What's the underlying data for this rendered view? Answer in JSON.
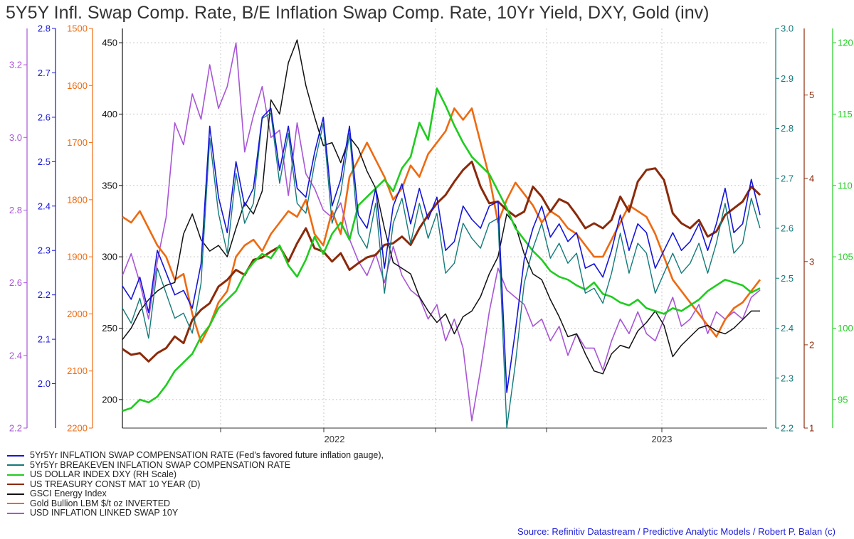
{
  "chart_data": {
    "type": "line",
    "title": "5Y5Y Infl. Swap Comp. Rate, B/E Inflation Swap Comp. Rate, 10Yr Yield, DXY, Gold (inv)",
    "x_tick_labels": [
      "2022",
      "2023"
    ],
    "x_range": [
      "2021-04",
      "2023-05"
    ],
    "grid": true,
    "axes": [
      {
        "id": "ils",
        "side": "left",
        "color": "#a855d6",
        "range": [
          2.2,
          3.3
        ],
        "ticks": [
          2.2,
          2.4,
          2.6,
          2.8,
          3.0,
          3.2
        ]
      },
      {
        "id": "swap5y5y",
        "side": "left",
        "color": "#1515d8",
        "range": [
          1.9,
          2.8
        ],
        "ticks": [
          2.0,
          2.1,
          2.2,
          2.3,
          2.4,
          2.5,
          2.6,
          2.7,
          2.8
        ]
      },
      {
        "id": "gold_inv",
        "side": "left",
        "color": "#ee6a10",
        "inverted": true,
        "range": [
          1500,
          2200
        ],
        "ticks": [
          1500,
          1600,
          1700,
          1800,
          1900,
          2000,
          2100,
          2200
        ]
      },
      {
        "id": "gsci",
        "side": "left",
        "color": "#111111",
        "range": [
          180,
          460
        ],
        "ticks": [
          200,
          250,
          300,
          350,
          400,
          450
        ]
      },
      {
        "id": "breakeven",
        "side": "right",
        "color": "#137a7a",
        "range": [
          2.2,
          3.0
        ],
        "ticks": [
          2.2,
          2.3,
          2.4,
          2.5,
          2.6,
          2.7,
          2.8,
          2.9,
          3.0
        ]
      },
      {
        "id": "ust10y",
        "side": "right",
        "color": "#8b2a0a",
        "range": [
          1,
          5.8
        ],
        "ticks": [
          1,
          2,
          3,
          4,
          5
        ]
      },
      {
        "id": "dxy",
        "side": "right",
        "color": "#1fcc1f",
        "range": [
          93,
          121
        ],
        "ticks": [
          95,
          100,
          105,
          110,
          115,
          120
        ]
      }
    ],
    "series": [
      {
        "name": "5Yr5Yr INFLATION SWAP COMPENSATION RATE (Fed's favored future inflation gauge),",
        "axis": "swap5y5y",
        "color": "#1515d8",
        "width": 1.6,
        "values": [
          2.22,
          2.19,
          2.24,
          2.16,
          2.3,
          2.25,
          2.2,
          2.21,
          2.17,
          2.27,
          2.58,
          2.42,
          2.34,
          2.5,
          2.4,
          2.44,
          2.6,
          2.62,
          2.48,
          2.58,
          2.44,
          2.42,
          2.52,
          2.6,
          2.4,
          2.46,
          2.58,
          2.38,
          2.35,
          2.44,
          2.26,
          2.4,
          2.45,
          2.36,
          2.44,
          2.37,
          2.42,
          2.3,
          2.32,
          2.4,
          2.37,
          2.35,
          2.4,
          2.41,
          1.98,
          2.12,
          2.28,
          2.35,
          2.4,
          2.33,
          2.36,
          2.32,
          2.34,
          2.26,
          2.27,
          2.24,
          2.3,
          2.38,
          2.3,
          2.36,
          2.34,
          2.26,
          2.3,
          2.34,
          2.3,
          2.32,
          2.36,
          2.3,
          2.36,
          2.44,
          2.34,
          2.36,
          2.46,
          2.38
        ]
      },
      {
        "name": "5Yr5Yr BREAKEVEN INFLATION SWAP COMPENSATION RATE",
        "axis": "breakeven",
        "color": "#137a7a",
        "width": 1.4,
        "values": [
          2.44,
          2.41,
          2.46,
          2.38,
          2.52,
          2.47,
          2.42,
          2.43,
          2.39,
          2.49,
          2.78,
          2.63,
          2.55,
          2.71,
          2.61,
          2.65,
          2.82,
          2.83,
          2.69,
          2.79,
          2.65,
          2.63,
          2.73,
          2.81,
          2.61,
          2.67,
          2.79,
          2.59,
          2.56,
          2.65,
          2.47,
          2.61,
          2.66,
          2.57,
          2.65,
          2.58,
          2.63,
          2.51,
          2.53,
          2.61,
          2.58,
          2.56,
          2.61,
          2.62,
          2.2,
          2.33,
          2.49,
          2.56,
          2.61,
          2.54,
          2.57,
          2.53,
          2.55,
          2.47,
          2.48,
          2.45,
          2.51,
          2.59,
          2.51,
          2.57,
          2.55,
          2.47,
          2.51,
          2.55,
          2.51,
          2.53,
          2.57,
          2.51,
          2.57,
          2.65,
          2.55,
          2.57,
          2.66,
          2.6
        ]
      },
      {
        "name": "US DOLLAR INDEX DXY (RH Scale)",
        "axis": "dxy",
        "color": "#1fcc1f",
        "width": 2.6,
        "values": [
          94.2,
          94.4,
          95.0,
          94.8,
          95.2,
          96.0,
          97.0,
          97.6,
          98.2,
          99.4,
          100.2,
          101.4,
          102.0,
          102.6,
          103.8,
          104.6,
          105.2,
          104.9,
          105.8,
          104.4,
          103.6,
          104.8,
          106.4,
          105.2,
          106.6,
          107.4,
          106.2,
          108.6,
          109.2,
          109.8,
          110.4,
          109.6,
          111.2,
          112.0,
          114.4,
          113.2,
          116.8,
          115.6,
          114.2,
          113.0,
          112.0,
          111.4,
          110.8,
          109.6,
          108.4,
          107.0,
          106.2,
          105.4,
          104.8,
          104.0,
          103.6,
          103.4,
          103.0,
          102.7,
          103.2,
          102.4,
          102.2,
          101.8,
          101.6,
          102.0,
          101.4,
          101.2,
          101.0,
          101.4,
          101.2,
          101.6,
          102.0,
          102.6,
          103.0,
          103.4,
          103.2,
          103.0,
          102.5,
          102.8
        ]
      },
      {
        "name": "US TREASURY CONST MAT 10 YEAR (D)",
        "axis": "ust10y",
        "color": "#8b2a0a",
        "width": 3.0,
        "values": [
          1.95,
          1.88,
          1.9,
          1.8,
          1.9,
          1.96,
          2.1,
          2.02,
          2.3,
          2.42,
          2.5,
          2.7,
          2.78,
          2.9,
          2.84,
          3.02,
          3.05,
          3.12,
          3.18,
          3.0,
          3.22,
          3.4,
          3.16,
          3.12,
          3.0,
          3.1,
          2.9,
          2.98,
          3.05,
          3.08,
          3.2,
          3.22,
          3.3,
          3.2,
          3.4,
          3.56,
          3.7,
          3.8,
          3.96,
          4.1,
          4.2,
          3.9,
          3.7,
          3.72,
          3.62,
          3.54,
          3.6,
          3.9,
          3.78,
          3.6,
          3.75,
          3.7,
          3.56,
          3.4,
          3.46,
          3.4,
          3.5,
          3.78,
          3.6,
          3.96,
          4.1,
          4.12,
          3.98,
          3.58,
          3.46,
          3.4,
          3.5,
          3.3,
          3.36,
          3.56,
          3.64,
          3.72,
          3.9,
          3.8
        ]
      },
      {
        "name": "GSCI Energy Index",
        "axis": "gsci",
        "color": "#111111",
        "width": 1.5,
        "values": [
          242,
          250,
          262,
          270,
          276,
          280,
          282,
          316,
          330,
          312,
          304,
          308,
          300,
          320,
          338,
          330,
          346,
          410,
          400,
          436,
          452,
          420,
          398,
          378,
          380,
          366,
          384,
          376,
          360,
          348,
          320,
          296,
          292,
          288,
          272,
          262,
          254,
          260,
          246,
          258,
          262,
          272,
          288,
          300,
          330,
          322,
          302,
          288,
          284,
          270,
          258,
          244,
          246,
          232,
          220,
          218,
          232,
          238,
          236,
          248,
          254,
          262,
          252,
          230,
          238,
          244,
          250,
          252,
          248,
          246,
          250,
          256,
          262,
          262
        ]
      },
      {
        "name": "Gold Bullion LBM $/t oz INVERTED",
        "axis": "gold_inv",
        "color": "#ee6a10",
        "width": 2.6,
        "values": [
          1830,
          1840,
          1820,
          1850,
          1880,
          1900,
          1940,
          1930,
          2000,
          2050,
          2020,
          1980,
          1960,
          1900,
          1880,
          1870,
          1890,
          1860,
          1840,
          1820,
          1830,
          1800,
          1860,
          1880,
          1820,
          1860,
          1760,
          1730,
          1700,
          1730,
          1760,
          1800,
          1780,
          1740,
          1760,
          1720,
          1700,
          1680,
          1640,
          1660,
          1640,
          1700,
          1760,
          1840,
          1800,
          1770,
          1790,
          1810,
          1840,
          1820,
          1830,
          1850,
          1860,
          1880,
          1900,
          1900,
          1870,
          1840,
          1810,
          1820,
          1830,
          1860,
          1900,
          1940,
          1960,
          1980,
          2000,
          2020,
          2040,
          2010,
          1990,
          1980,
          1960,
          1940
        ]
      },
      {
        "name": "USD INFLATION LINKED SWAP 10Y",
        "axis": "ils",
        "color": "#a855d6",
        "width": 1.6,
        "values": [
          2.62,
          2.68,
          2.6,
          2.5,
          2.66,
          2.78,
          3.04,
          2.98,
          3.12,
          3.05,
          3.2,
          3.08,
          3.14,
          3.26,
          2.96,
          3.06,
          3.14,
          3.0,
          3.02,
          2.84,
          3.04,
          2.9,
          2.86,
          2.8,
          2.78,
          2.82,
          2.72,
          2.66,
          2.62,
          2.68,
          2.6,
          2.7,
          2.62,
          2.58,
          2.56,
          2.5,
          2.54,
          2.44,
          2.5,
          2.42,
          2.22,
          2.36,
          2.52,
          2.64,
          2.58,
          2.56,
          2.54,
          2.48,
          2.5,
          2.44,
          2.48,
          2.4,
          2.46,
          2.42,
          2.42,
          2.36,
          2.44,
          2.5,
          2.46,
          2.52,
          2.46,
          2.44,
          2.5,
          2.56,
          2.48,
          2.5,
          2.54,
          2.46,
          2.52,
          2.5,
          2.52,
          2.5,
          2.56,
          2.58
        ]
      }
    ],
    "source": "Source: Refinitiv Datastream /  Predictive Analytic Models  / Robert P. Balan (c)"
  }
}
